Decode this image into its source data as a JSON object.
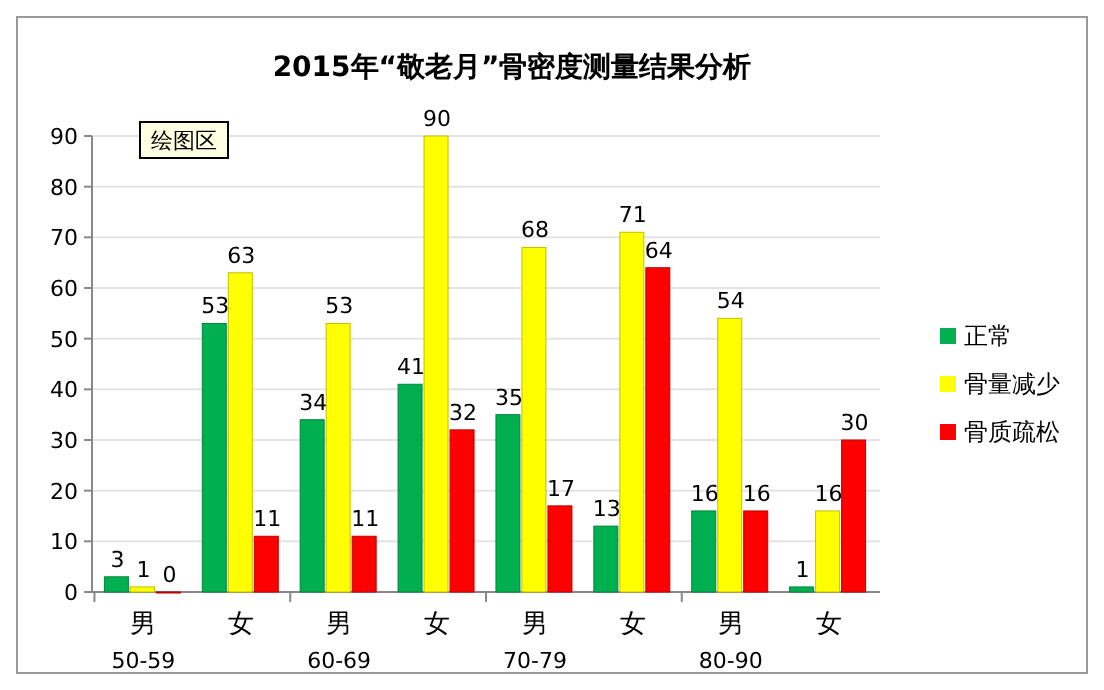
{
  "chart_data": {
    "type": "bar",
    "title": "2015年“敬老月”骨密度测量结果分析",
    "categories": [
      "男\n50-59",
      "女",
      "男\n60-69",
      "女",
      "男\n70-79",
      "女",
      "男\n80-90",
      "女"
    ],
    "series": [
      {
        "name": "正常",
        "color": "#00b050",
        "values": [
          3,
          53,
          34,
          41,
          35,
          13,
          16,
          1
        ]
      },
      {
        "name": "骨量减少",
        "color": "#ffff00",
        "values": [
          1,
          63,
          53,
          90,
          68,
          71,
          54,
          16
        ]
      },
      {
        "name": "骨质疏松",
        "color": "#ff0000",
        "values": [
          0,
          11,
          11,
          32,
          17,
          64,
          16,
          30
        ]
      }
    ],
    "ylim": [
      0,
      90
    ],
    "yticks": [
      0,
      10,
      20,
      30,
      40,
      50,
      60,
      70,
      80,
      90
    ],
    "grid": "y",
    "legend": "right",
    "data_labels": true,
    "annotations": [
      "绘图区"
    ]
  }
}
